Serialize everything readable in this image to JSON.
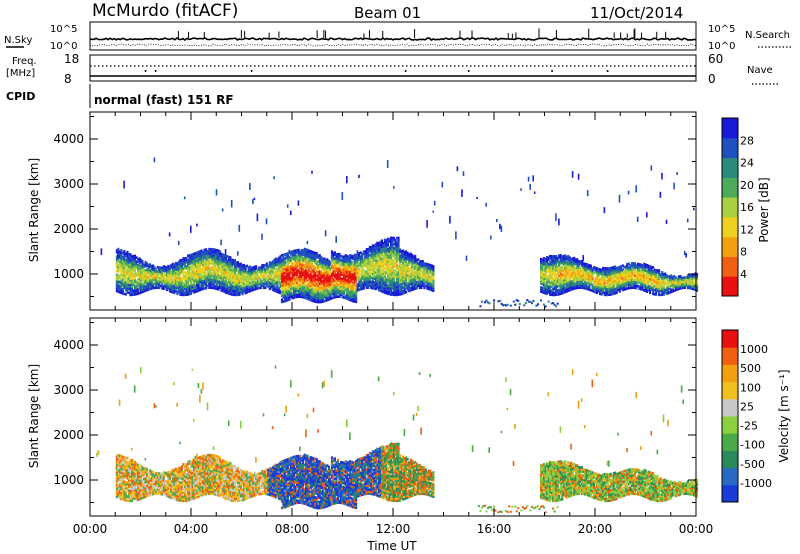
{
  "header": {
    "station": "McMurdo (fitACF)",
    "beam": "Beam 01",
    "date": "11/Oct/2014"
  },
  "top_panels": {
    "nsky_label": "N.Sky",
    "nsky_ticks": [
      "10^5",
      "10^0"
    ],
    "nsearch_label": "N.Search",
    "nsearch_ticks": [
      "10^5",
      "10^0"
    ],
    "freq_label": "Freq.",
    "freq_unit": "[MHz]",
    "freq_ticks": [
      "18",
      "8"
    ],
    "nave_label": "Nave",
    "nave_ticks": [
      "60",
      "0"
    ],
    "cpid_label": "CPID",
    "cpid_text": "normal (fast) 151 RF"
  },
  "chart_data": [
    {
      "type": "heatmap",
      "name": "power",
      "ylabel": "Slant Range [km]",
      "xlabel": "",
      "yticks": [
        "1000",
        "2000",
        "3000",
        "4000"
      ],
      "ylim": [
        200,
        4600
      ],
      "xlim": [
        0,
        24
      ],
      "colorbar": {
        "label": "Power [dB]",
        "ticks": [
          "4",
          "8",
          "12",
          "16",
          "20",
          "24",
          "28"
        ],
        "colors": [
          "#1a1ad8",
          "#2050c0",
          "#2c8a7a",
          "#4caa5a",
          "#a8d040",
          "#f0d020",
          "#f0a010",
          "#f06010",
          "#e81010"
        ]
      },
      "bands": [
        {
          "t": [
            1.0,
            13.5
          ],
          "r": [
            600,
            1500
          ],
          "level": "mixed"
        },
        {
          "t": [
            7.5,
            10.5
          ],
          "r": [
            400,
            1300
          ],
          "level": "high"
        },
        {
          "t": [
            18.0,
            24.0
          ],
          "r": [
            600,
            1300
          ],
          "level": "mixed"
        },
        {
          "t": [
            15.5,
            18.5
          ],
          "r": [
            250,
            400
          ],
          "level": "low"
        }
      ]
    },
    {
      "type": "heatmap",
      "name": "velocity",
      "ylabel": "Slant Range [km]",
      "xlabel": "Time UT",
      "yticks": [
        "1000",
        "2000",
        "3000",
        "4000"
      ],
      "xticks": [
        "00:00",
        "04:00",
        "08:00",
        "12:00",
        "16:00",
        "20:00",
        "00:00"
      ],
      "ylim": [
        200,
        4600
      ],
      "xlim": [
        0,
        24
      ],
      "colorbar": {
        "label": "Velocity [m s⁻¹]",
        "ticks": [
          "1000",
          "500",
          "100",
          "25",
          "-25",
          "-100",
          "-500",
          "-1000"
        ],
        "colors": [
          "#1a3ad8",
          "#2a6ac0",
          "#2a8a5a",
          "#4aaa4a",
          "#8ad040",
          "#c8c8c8",
          "#f0c020",
          "#f0a010",
          "#f06010",
          "#e81010"
        ]
      }
    }
  ]
}
